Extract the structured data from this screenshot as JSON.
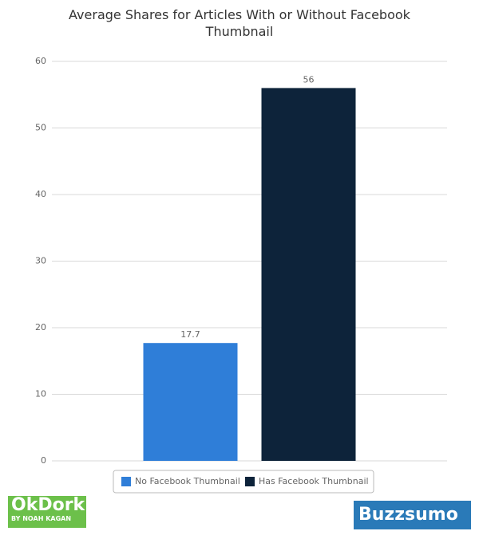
{
  "chart_data": {
    "type": "bar",
    "title": "Average Shares for Articles With or Without Facebook Thumbnail",
    "categories": [
      null
    ],
    "series": [
      {
        "name": "No Facebook Thumbnail",
        "color": "#2f7ed8",
        "values": [
          17.7
        ]
      },
      {
        "name": "Has Facebook Thumbnail",
        "color": "#0d233a",
        "values": [
          56
        ]
      }
    ],
    "ylim": [
      0,
      60
    ],
    "yticks": [
      0,
      10,
      20,
      30,
      40,
      50,
      60
    ],
    "grid": true,
    "legend": "bottom"
  },
  "logos": {
    "left": "OkDork",
    "left_sub": "BY NOAH KAGAN",
    "right": "Buzzsumo"
  }
}
